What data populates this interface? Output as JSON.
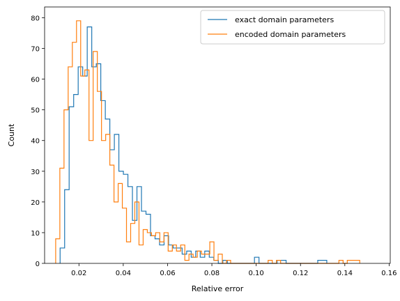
{
  "chart_data": {
    "type": "histogram",
    "title": "",
    "xlabel": "Relative error",
    "ylabel": "Count",
    "xlim": [
      0.0045,
      0.1605
    ],
    "ylim": [
      0,
      83.5
    ],
    "xticks": [
      0.02,
      0.04,
      0.06,
      0.08,
      0.1,
      0.12,
      0.14,
      0.16
    ],
    "xtick_labels": [
      "0.02",
      "0.04",
      "0.06",
      "0.08",
      "0.10",
      "0.12",
      "0.14",
      "0.16"
    ],
    "yticks": [
      0,
      10,
      20,
      30,
      40,
      50,
      60,
      70,
      80
    ],
    "ytick_labels": [
      "0",
      "10",
      "20",
      "30",
      "40",
      "50",
      "60",
      "70",
      "80"
    ],
    "grid": false,
    "legend_position": "top-right",
    "series": [
      {
        "name": "exact domain parameters",
        "color": "#1f77b4",
        "bin_start": 0.0115,
        "bin_width": 0.00204,
        "counts": [
          5,
          24,
          51,
          55,
          64,
          61,
          77,
          64,
          65,
          53,
          47,
          37,
          42,
          30,
          29,
          25,
          14,
          25,
          17,
          16,
          9,
          8,
          6,
          9,
          6,
          5,
          5,
          3,
          4,
          2,
          4,
          2,
          4,
          2,
          1,
          0,
          1,
          0,
          0,
          0,
          0,
          0,
          0,
          2,
          0,
          0,
          0,
          0,
          1,
          1,
          0,
          0,
          0,
          0,
          0,
          0,
          0,
          1,
          1
        ]
      },
      {
        "name": "encoded domain parameters",
        "color": "#ff7f0e",
        "bin_start": 0.0095,
        "bin_width": 0.00188,
        "counts": [
          8,
          31,
          50,
          64,
          72,
          79,
          61,
          63,
          40,
          69,
          56,
          40,
          42,
          32,
          20,
          26,
          18,
          7,
          13,
          20,
          6,
          11,
          10,
          9,
          10,
          7,
          10,
          4,
          6,
          4,
          6,
          1,
          3,
          2,
          4,
          3,
          3,
          7,
          1,
          3,
          0,
          1,
          0,
          0,
          0,
          0,
          0,
          0,
          0,
          0,
          0,
          1,
          0,
          1,
          0,
          0,
          0,
          0,
          0,
          0,
          0,
          0,
          0,
          0,
          0,
          0,
          0,
          0,
          1,
          0,
          1,
          1,
          1
        ]
      }
    ]
  }
}
